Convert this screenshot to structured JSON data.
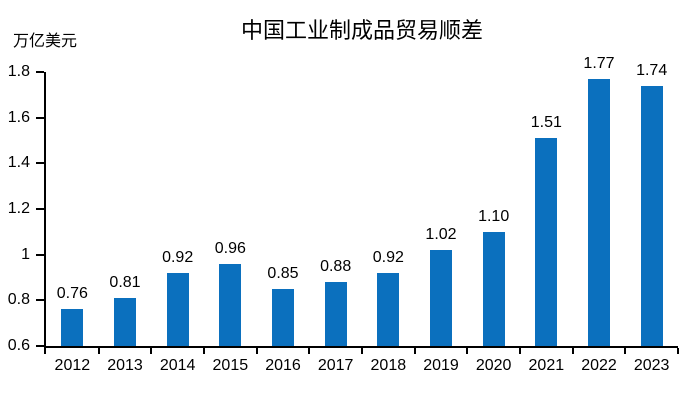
{
  "chart_data": {
    "type": "bar",
    "title": "中国工业制成品贸易顺差",
    "unit_label": "万亿美元",
    "categories": [
      "2012",
      "2013",
      "2014",
      "2015",
      "2016",
      "2017",
      "2018",
      "2019",
      "2020",
      "2021",
      "2022",
      "2023"
    ],
    "values": [
      0.76,
      0.81,
      0.92,
      0.96,
      0.85,
      0.88,
      0.92,
      1.02,
      1.1,
      1.51,
      1.77,
      1.74
    ],
    "value_labels": [
      "0.76",
      "0.81",
      "0.92",
      "0.96",
      "0.85",
      "0.88",
      "0.92",
      "1.02",
      "1.10",
      "1.51",
      "1.77",
      "1.74"
    ],
    "xlabel": "",
    "ylabel": "万亿美元",
    "ylim": [
      0.6,
      1.8
    ],
    "ytick_values": [
      0.6,
      0.8,
      1,
      1.2,
      1.4,
      1.6,
      1.8
    ],
    "ytick_labels": [
      "0.6",
      "0.8",
      "1",
      "1.2",
      "1.4",
      "1.6",
      "1.8"
    ],
    "grid": false,
    "legend": false,
    "colors": {
      "bar": "#0B70BE",
      "axis": "#000000",
      "text": "#000000"
    }
  }
}
